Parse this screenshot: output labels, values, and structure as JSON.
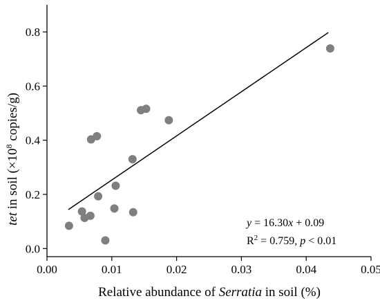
{
  "colors": {
    "point": "#7f7f7f",
    "line": "#000000",
    "axis": "#000000"
  },
  "chart_data": {
    "type": "scatter",
    "title": "",
    "xlabel": {
      "prefix": "Relative abundance of ",
      "italic": "Serratia",
      "suffix": " in soil (%)"
    },
    "ylabel": {
      "italic": "tet",
      "middle": " in soil (×10",
      "sup": "8",
      "suffix": " copies/g)"
    },
    "xlim": [
      0.0,
      0.05
    ],
    "ylim": [
      -0.03,
      0.9
    ],
    "x_ticks": [
      0.0,
      0.01,
      0.02,
      0.03,
      0.04,
      0.05
    ],
    "x_tick_labels": [
      "0.00",
      "0.01",
      "0.02",
      "0.03",
      "0.04",
      "0.05"
    ],
    "y_ticks": [
      0.0,
      0.2,
      0.4,
      0.6,
      0.8
    ],
    "y_tick_labels": [
      "0.0",
      "0.2",
      "0.4",
      "0.6",
      "0.8"
    ],
    "grid": false,
    "points": [
      {
        "x": 0.0034,
        "y": 0.084
      },
      {
        "x": 0.0054,
        "y": 0.137
      },
      {
        "x": 0.0058,
        "y": 0.113
      },
      {
        "x": 0.0067,
        "y": 0.121
      },
      {
        "x": 0.0068,
        "y": 0.403
      },
      {
        "x": 0.0077,
        "y": 0.415
      },
      {
        "x": 0.0079,
        "y": 0.193
      },
      {
        "x": 0.009,
        "y": 0.03
      },
      {
        "x": 0.0104,
        "y": 0.148
      },
      {
        "x": 0.0106,
        "y": 0.232
      },
      {
        "x": 0.0132,
        "y": 0.33
      },
      {
        "x": 0.0133,
        "y": 0.134
      },
      {
        "x": 0.0145,
        "y": 0.511
      },
      {
        "x": 0.0153,
        "y": 0.516
      },
      {
        "x": 0.0188,
        "y": 0.474
      },
      {
        "x": 0.0437,
        "y": 0.739
      }
    ],
    "fit_line": {
      "slope": 16.3,
      "intercept": 0.09,
      "x_range": [
        0.0033,
        0.0434
      ]
    },
    "annotation": {
      "line1": {
        "italic": "y",
        "text": " = 16.30",
        "italic2": "x",
        "text2": " + 0.09"
      },
      "line2": {
        "text": "R",
        "sup": "2",
        "text2": " = 0.759, ",
        "italic": "p",
        "text3": " < 0.01"
      }
    }
  }
}
